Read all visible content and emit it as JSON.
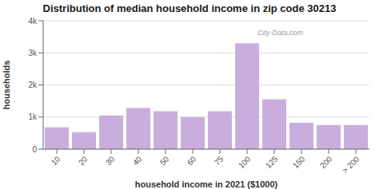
{
  "chart_data": {
    "type": "bar",
    "title": "Distribution of median household income in zip code 30213",
    "xlabel": "household income in 2021 ($1000)",
    "ylabel": "households",
    "categories": [
      "10",
      "20",
      "30",
      "40",
      "50",
      "60",
      "75",
      "100",
      "125",
      "150",
      "200",
      "> 200"
    ],
    "values": [
      680,
      530,
      1050,
      1280,
      1180,
      1000,
      1180,
      3300,
      1550,
      820,
      750,
      750
    ],
    "color": "#c9aedd",
    "ylim": [
      0,
      4000
    ],
    "yticks": [
      0,
      {
        "value": 1000,
        "label": "1k"
      },
      {
        "value": 2000,
        "label": "2k"
      },
      {
        "value": 3000,
        "label": "3k"
      },
      {
        "value": 4000,
        "label": "4k"
      }
    ],
    "grid": true,
    "annotations": [
      "City-Data.com"
    ]
  }
}
